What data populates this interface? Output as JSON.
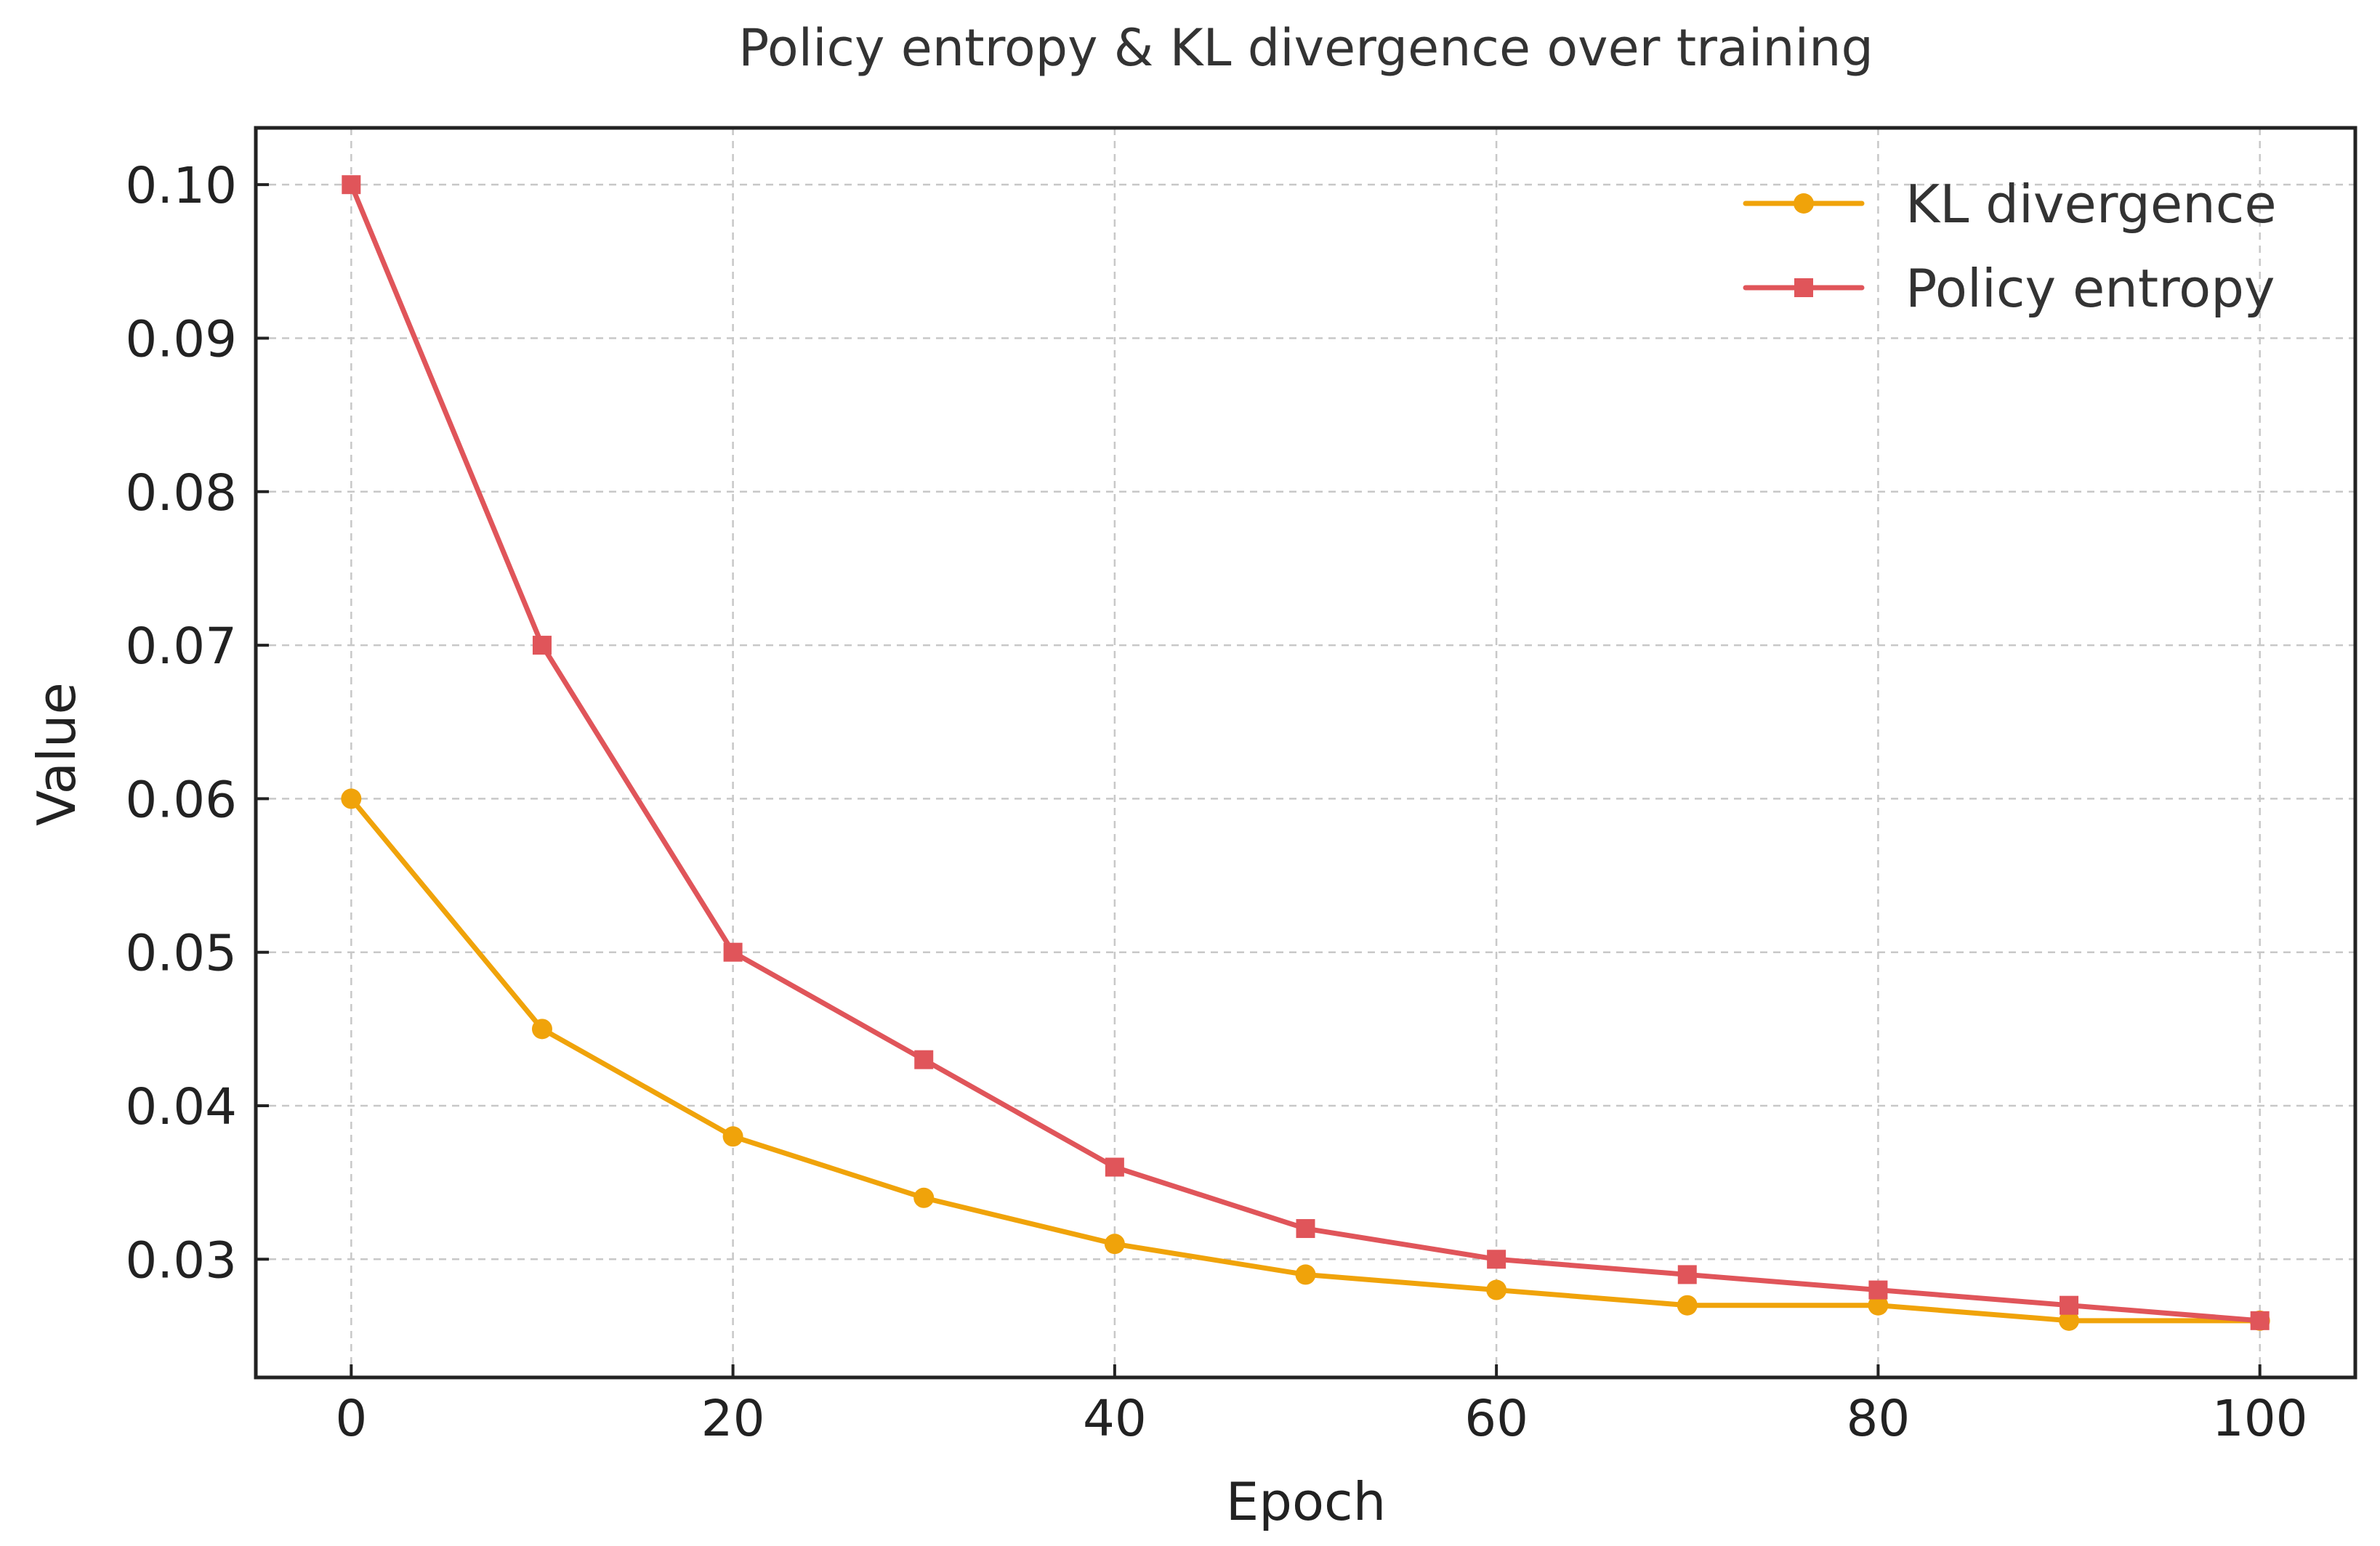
{
  "chart_data": {
    "type": "line",
    "title": "Policy entropy & KL divergence over training",
    "xlabel": "Epoch",
    "ylabel": "Value",
    "x": [
      0,
      10,
      20,
      30,
      40,
      50,
      60,
      70,
      80,
      90,
      100
    ],
    "xlim": [
      -5,
      105
    ],
    "ylim": [
      0.0223,
      0.1037
    ],
    "x_ticks": [
      0,
      20,
      40,
      60,
      80,
      100
    ],
    "x_tick_labels": [
      "0",
      "20",
      "40",
      "60",
      "80",
      "100"
    ],
    "y_ticks": [
      0.03,
      0.04,
      0.05,
      0.06,
      0.07,
      0.08,
      0.09,
      0.1
    ],
    "y_tick_labels": [
      "0.03",
      "0.04",
      "0.05",
      "0.06",
      "0.07",
      "0.08",
      "0.09",
      "0.10"
    ],
    "grid": true,
    "legend_position": "top-right",
    "series": [
      {
        "name": "KL divergence",
        "color": "#F0A30A",
        "marker": "circle",
        "values": [
          0.06,
          0.045,
          0.038,
          0.034,
          0.031,
          0.029,
          0.028,
          0.027,
          0.027,
          0.026,
          0.026
        ]
      },
      {
        "name": "Policy entropy",
        "color": "#E0555A",
        "marker": "square",
        "values": [
          0.1,
          0.07,
          0.05,
          0.043,
          0.036,
          0.032,
          0.03,
          0.029,
          0.028,
          0.027,
          0.026
        ]
      }
    ]
  }
}
